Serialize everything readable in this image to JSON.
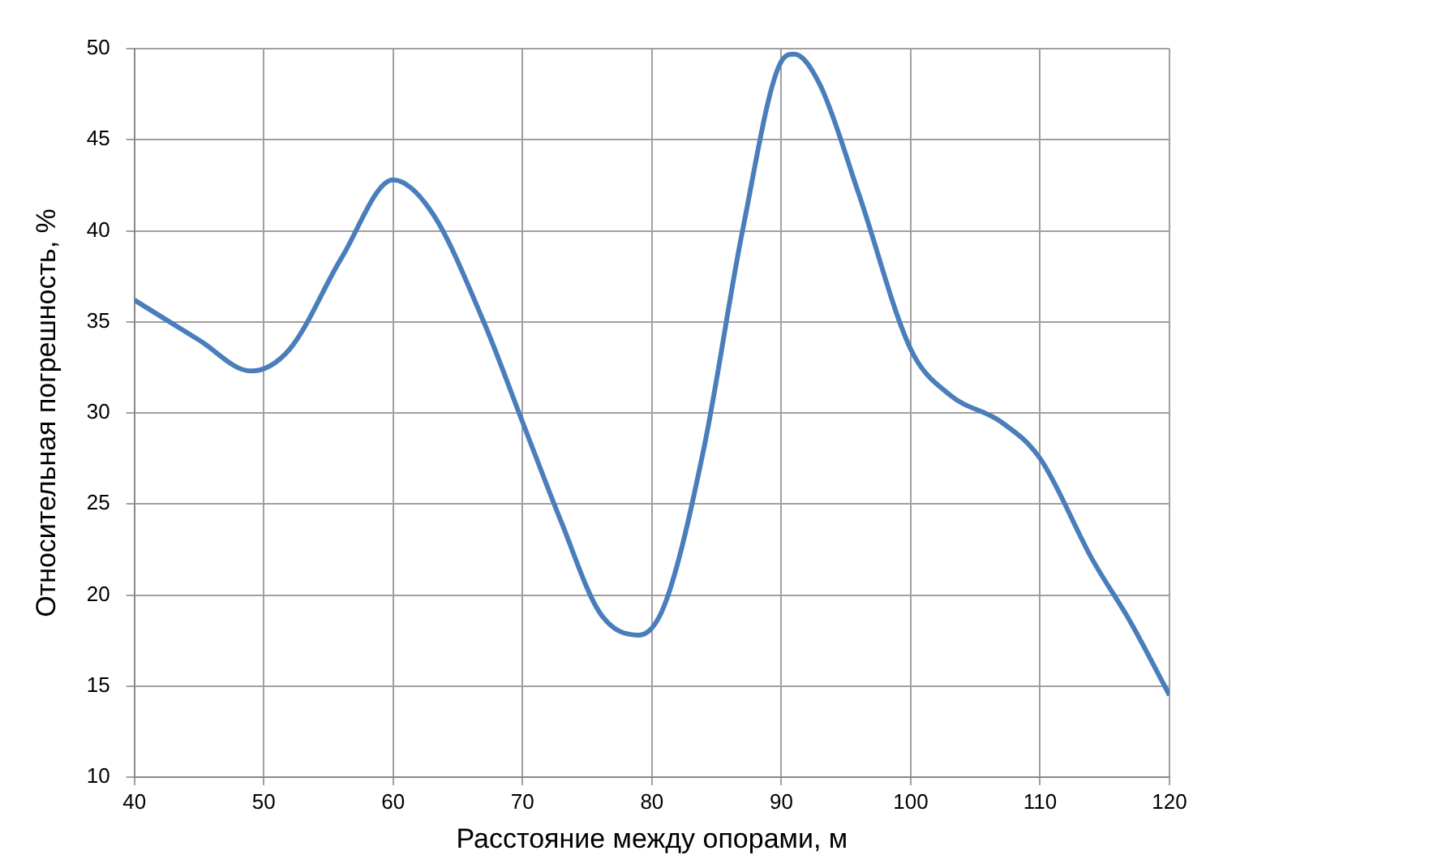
{
  "chart_data": {
    "type": "line",
    "xlabel": "Расстояние между опорами, м",
    "ylabel": "Относительная погрешность, %",
    "x": [
      40,
      45,
      49,
      52,
      56,
      60,
      63,
      67,
      70,
      73,
      76,
      79,
      81,
      84,
      87,
      90,
      91,
      93,
      96,
      100,
      103,
      107,
      110,
      114,
      117,
      120
    ],
    "series": [
      {
        "color": "#4a7ebb",
        "values": [
          36.2,
          34,
          32.3,
          33.5,
          38.5,
          42.8,
          41,
          35,
          29.5,
          24,
          19,
          17.8,
          19.5,
          28,
          40,
          49.3,
          49.7,
          48,
          42,
          33.5,
          31,
          29.5,
          27.5,
          22,
          18.5,
          14.5
        ]
      }
    ],
    "xlim": [
      40,
      120
    ],
    "xticks": [
      40,
      50,
      60,
      70,
      80,
      90,
      100,
      110,
      120
    ],
    "ylim": [
      10,
      50
    ],
    "yticks": [
      10,
      15,
      20,
      25,
      30,
      35,
      40,
      45,
      50
    ],
    "grid": true,
    "legend": false,
    "marker": "none",
    "line_style": "solid"
  }
}
